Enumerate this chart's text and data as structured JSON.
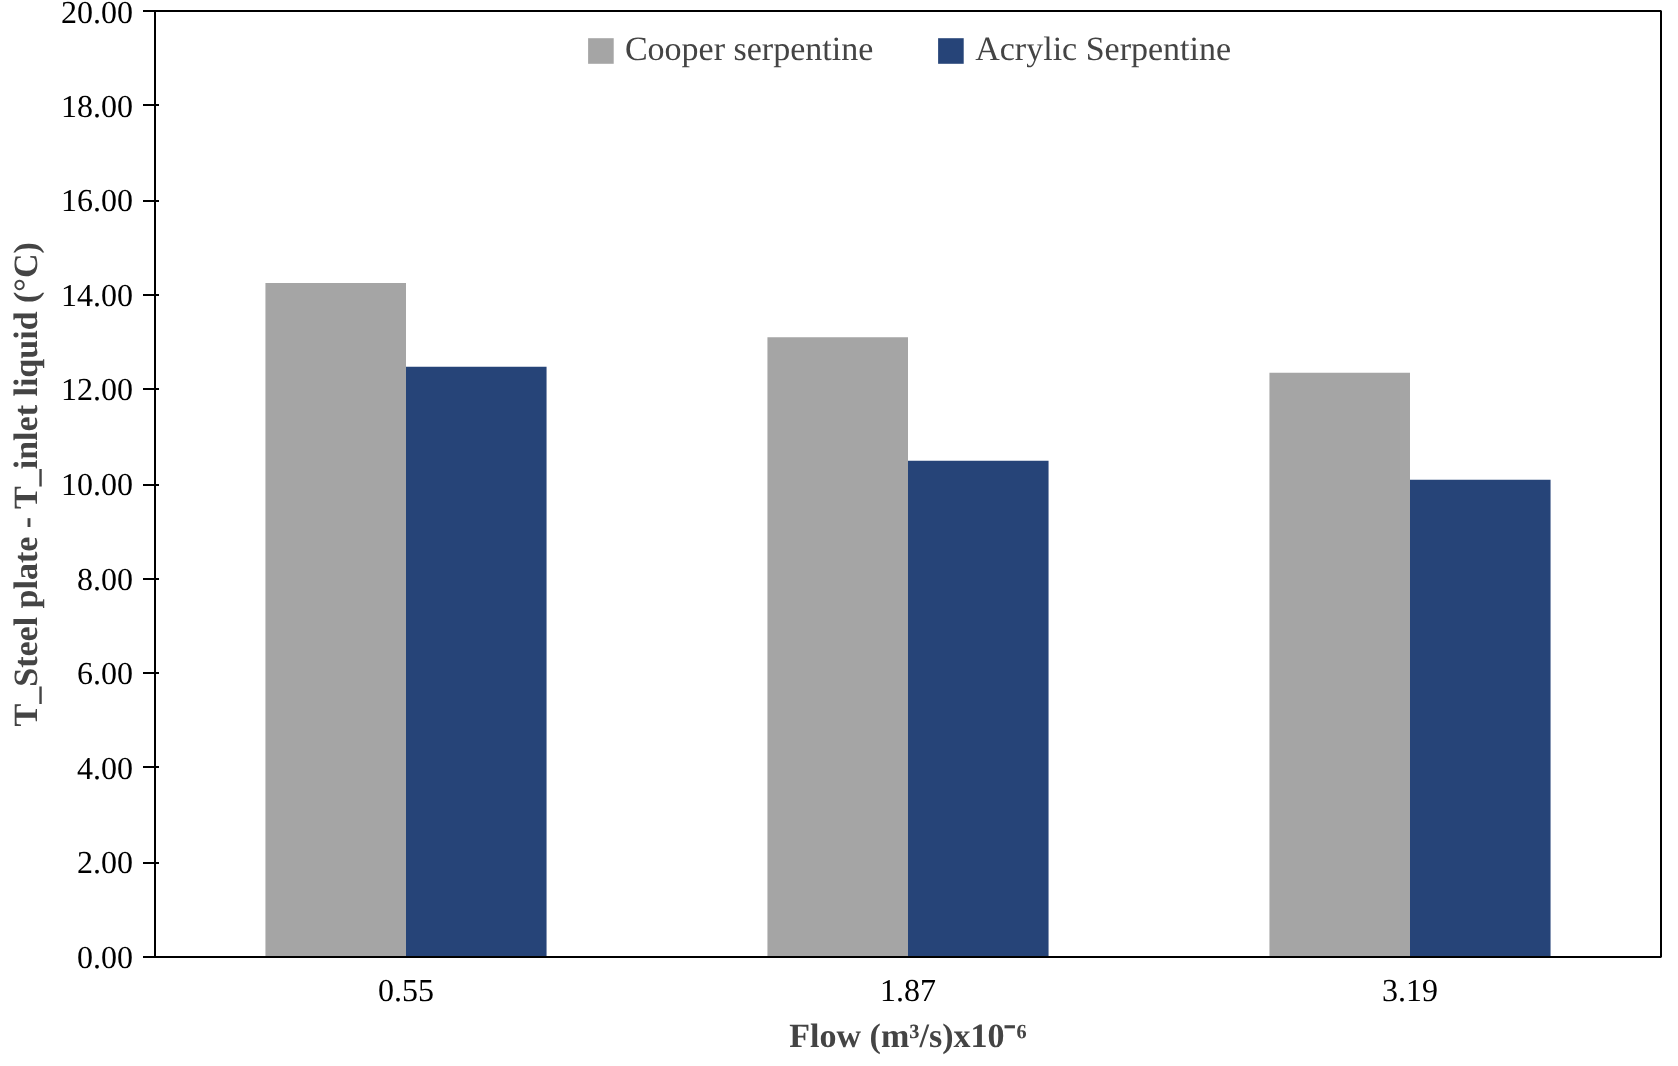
{
  "chart_data": {
    "type": "bar",
    "xlabel": "Flow (m³/s)x10⁻⁶",
    "ylabel": "T_Steel plate - T_inlet liquid (°C)",
    "categories": [
      "0.55",
      "1.87",
      "3.19"
    ],
    "series": [
      {
        "name": "Cooper serpentine",
        "color": "#a5a5a5",
        "values": [
          14.25,
          13.1,
          12.35
        ]
      },
      {
        "name": "Acrylic Serpentine",
        "color": "#264478",
        "values": [
          12.48,
          10.49,
          10.09
        ]
      }
    ],
    "ylim": [
      0,
      20
    ],
    "yticks": [
      {
        "value": 0,
        "label": "0.00"
      },
      {
        "value": 2,
        "label": "2.00"
      },
      {
        "value": 4,
        "label": "4.00"
      },
      {
        "value": 6,
        "label": "6.00"
      },
      {
        "value": 8,
        "label": "8.00"
      },
      {
        "value": 10,
        "label": "10.00"
      },
      {
        "value": 12,
        "label": "12.00"
      },
      {
        "value": 14,
        "label": "14.00"
      },
      {
        "value": 16,
        "label": "16.00"
      },
      {
        "value": 18,
        "label": "18.00"
      },
      {
        "value": 20,
        "label": "20.00"
      }
    ],
    "grid": false,
    "legend": "top"
  }
}
